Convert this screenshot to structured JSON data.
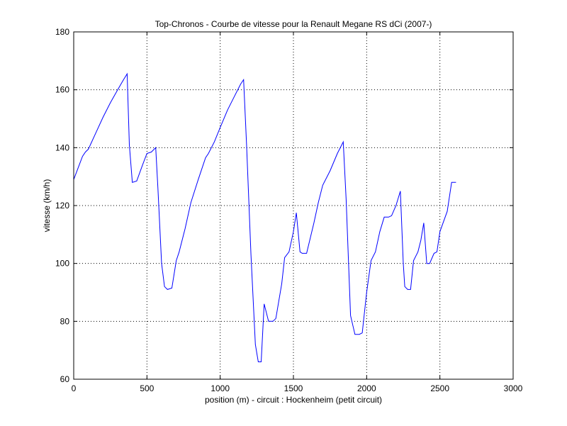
{
  "chart_data": {
    "type": "line",
    "title": "Top-Chronos - Courbe de vitesse pour la Renault Megane RS dCi (2007-)",
    "xlabel": "position (m) - circuit : Hockenheim (petit circuit)",
    "ylabel": "vitesse (km/h)",
    "xlim": [
      0,
      3000
    ],
    "ylim": [
      60,
      180
    ],
    "xticks": [
      0,
      500,
      1000,
      1500,
      2000,
      2500,
      3000
    ],
    "yticks": [
      60,
      80,
      100,
      120,
      140,
      160,
      180
    ],
    "grid": true,
    "line_color": "#0000ff",
    "series": [
      {
        "x": [
          0,
          30,
          60,
          80,
          100,
          150,
          200,
          250,
          300,
          340,
          365,
          380,
          400,
          430,
          470,
          500,
          530,
          560,
          575,
          600,
          620,
          640,
          670,
          700,
          720,
          760,
          800,
          850,
          900,
          920,
          960,
          1000,
          1050,
          1100,
          1140,
          1160,
          1180,
          1210,
          1240,
          1260,
          1280,
          1300,
          1330,
          1360,
          1380,
          1420,
          1440,
          1470,
          1500,
          1520,
          1545,
          1560,
          1590,
          1640,
          1670,
          1700,
          1750,
          1800,
          1840,
          1860,
          1875,
          1890,
          1920,
          1950,
          1970,
          2000,
          2030,
          2060,
          2090,
          2120,
          2150,
          2170,
          2200,
          2230,
          2250,
          2260,
          2280,
          2300,
          2320,
          2350,
          2370,
          2390,
          2410,
          2430,
          2460,
          2480,
          2500,
          2550,
          2580,
          2610
        ],
        "y": [
          129,
          133,
          137,
          138.5,
          139.5,
          145,
          150.5,
          155.5,
          160,
          163.5,
          165.5,
          141,
          128,
          128.5,
          134,
          138,
          138.5,
          140,
          126,
          100,
          92,
          91,
          91.5,
          101,
          104,
          112,
          121,
          129,
          136.5,
          138,
          142,
          147,
          153,
          158,
          162,
          163.5,
          141,
          103,
          72,
          66,
          66,
          86,
          80,
          80,
          81,
          93,
          102,
          104,
          111,
          117.5,
          104,
          103.5,
          103.5,
          114,
          121,
          127,
          132,
          138,
          142,
          122,
          102,
          82,
          75.5,
          75.5,
          76,
          90,
          101,
          104,
          111,
          116,
          116,
          116.5,
          120,
          125,
          100,
          92,
          91,
          91,
          101,
          104,
          108,
          114,
          100,
          100,
          103.5,
          104,
          111,
          118,
          128,
          128
        ]
      }
    ]
  }
}
